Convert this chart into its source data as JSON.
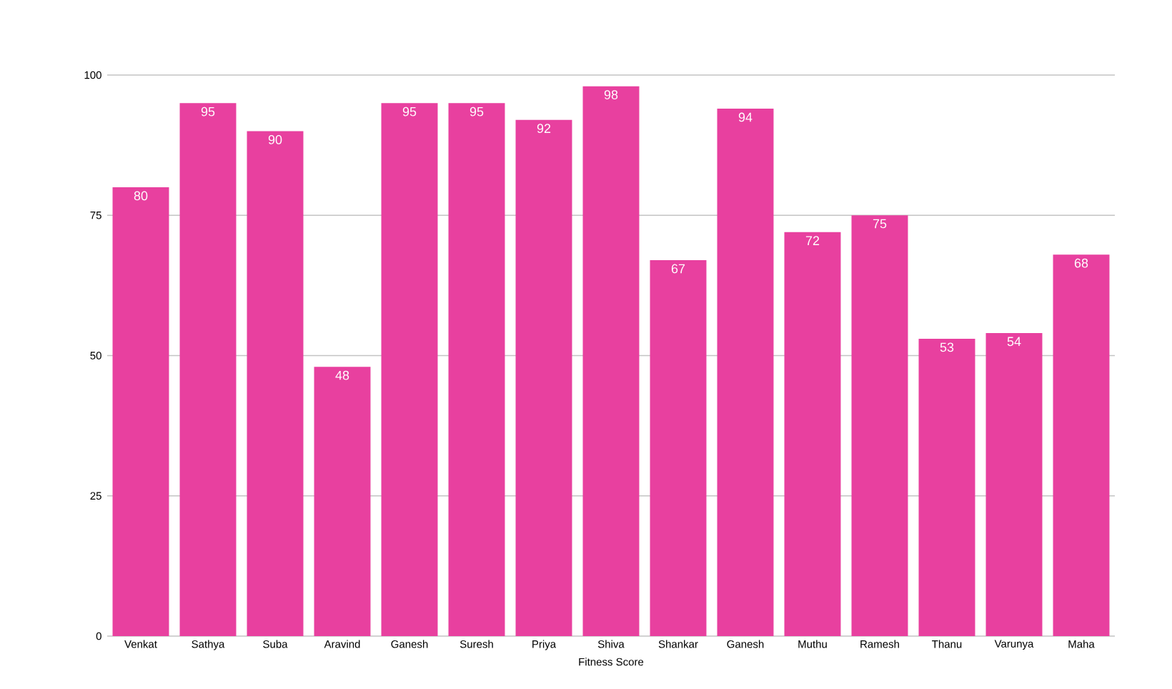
{
  "chart_data": {
    "type": "bar",
    "categories": [
      "Venkat",
      "Sathya",
      "Suba",
      "Aravind",
      "Ganesh",
      "Suresh",
      "Priya",
      "Shiva",
      "Shankar",
      "Ganesh",
      "Muthu",
      "Ramesh",
      "Thanu",
      "Varunya",
      "Maha"
    ],
    "values": [
      80,
      95,
      90,
      48,
      95,
      95,
      92,
      98,
      67,
      94,
      72,
      75,
      53,
      54,
      68
    ],
    "color": "#e8409f",
    "xlabel": "Fitness Score",
    "ylim": [
      0,
      100
    ],
    "yticks": [
      0,
      25,
      50,
      75,
      100
    ],
    "grid": "y",
    "data_labels": true
  }
}
